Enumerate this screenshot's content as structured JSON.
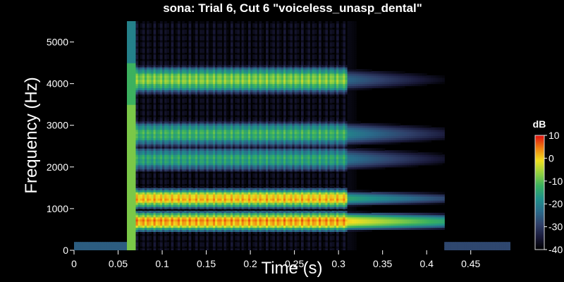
{
  "chart_data": {
    "type": "heatmap",
    "title": "sona: Trial 6, Cut 6 \"voiceless_unasp_dental\"",
    "xlabel": "Time (s)",
    "ylabel": "Frequency (Hz)",
    "xlim": [
      0,
      0.495
    ],
    "ylim": [
      0,
      5500
    ],
    "xticks": [
      0,
      0.05,
      0.1,
      0.15,
      0.2,
      0.25,
      0.3,
      0.35,
      0.4,
      0.45
    ],
    "xtick_labels": [
      "0",
      "0.05",
      "0.1",
      "0.15",
      "0.2",
      "0.25",
      "0.3",
      "0.35",
      "0.4",
      "0.45"
    ],
    "yticks": [
      0,
      1000,
      2000,
      3000,
      4000,
      5000
    ],
    "ytick_labels": [
      "0",
      "1000",
      "2000",
      "3000",
      "4000",
      "5000"
    ],
    "colorbar": {
      "title": "dB",
      "range": [
        -40,
        10
      ],
      "ticks": [
        10,
        0,
        -10,
        -20,
        -30,
        -40
      ],
      "tick_labels": [
        "10",
        "0",
        "-10",
        "-20",
        "-30",
        "-40"
      ],
      "colormap": [
        "#000000",
        "#1a1a3a",
        "#30406a",
        "#2a6a8a",
        "#20908a",
        "#38b060",
        "#90d040",
        "#f0e020",
        "#f08010",
        "#e01010"
      ]
    },
    "background_color": "#000000",
    "regions": [
      {
        "label": "silence",
        "t_start": 0.0,
        "t_end": 0.06,
        "f_max": 200,
        "level_db": -25
      },
      {
        "label": "burst",
        "t_start": 0.06,
        "t_end": 0.07,
        "f_max": 5500,
        "level_db": -12
      },
      {
        "label": "vowel",
        "t_start": 0.07,
        "t_end": 0.31,
        "level_db": -5
      },
      {
        "label": "decay",
        "t_start": 0.31,
        "t_end": 0.42,
        "level_db": -18
      },
      {
        "label": "silence",
        "t_start": 0.42,
        "t_end": 0.495,
        "f_max": 200,
        "level_db": -28
      }
    ],
    "formants_hz": [
      700,
      1250,
      2200,
      2800,
      4100
    ],
    "vowel_band_peak_db": [
      8,
      6,
      -10,
      -8,
      -3
    ],
    "decay_band_peak_db": [
      0,
      -14,
      -22,
      -20,
      -24
    ]
  }
}
